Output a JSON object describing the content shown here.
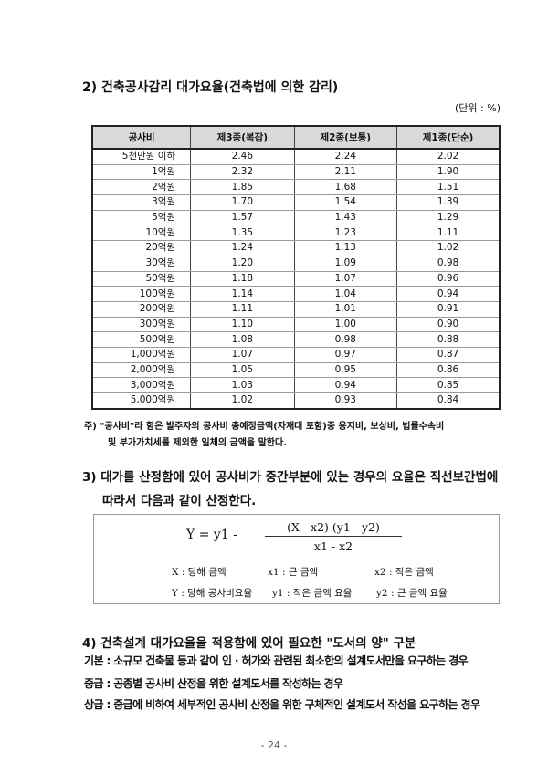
{
  "section2": {
    "title": "2) 건축공사감리 대가요율(건축법에 의한 감리)",
    "unit": "(단위 : %)",
    "table": {
      "headers": [
        "공사비",
        "제3종(복잡)",
        "제2종(보통)",
        "제1종(단순)"
      ],
      "rows": [
        [
          "5천만원 이하",
          "2.46",
          "2.24",
          "2.02"
        ],
        [
          "1억원",
          "2.32",
          "2.11",
          "1.90"
        ],
        [
          "2억원",
          "1.85",
          "1.68",
          "1.51"
        ],
        [
          "3억원",
          "1.70",
          "1.54",
          "1.39"
        ],
        [
          "5억원",
          "1.57",
          "1.43",
          "1.29"
        ],
        [
          "10억원",
          "1.35",
          "1.23",
          "1.11"
        ],
        [
          "20억원",
          "1.24",
          "1.13",
          "1.02"
        ],
        [
          "30억원",
          "1.20",
          "1.09",
          "0.98"
        ],
        [
          "50억원",
          "1.18",
          "1.07",
          "0.96"
        ],
        [
          "100억원",
          "1.14",
          "1.04",
          "0.94"
        ],
        [
          "200억원",
          "1.11",
          "1.01",
          "0.91"
        ],
        [
          "300억원",
          "1.10",
          "1.00",
          "0.90"
        ],
        [
          "500억원",
          "1.08",
          "0.98",
          "0.88"
        ],
        [
          "1,000억원",
          "1.07",
          "0.97",
          "0.87"
        ],
        [
          "2,000억원",
          "1.05",
          "0.95",
          "0.86"
        ],
        [
          "3,000억원",
          "1.03",
          "0.94",
          "0.85"
        ],
        [
          "5,000억원",
          "1.02",
          "0.93",
          "0.84"
        ]
      ]
    },
    "note_line1": "주) \"공사비\"라 함은 발주자의 공사비 총예정금액(자재대 포함)중 용지비, 보상비, 법률수속비",
    "note_line2": "및 부가가치세를 제외한 일체의 금액을 말한다."
  },
  "section3": {
    "line1": "3) 대가를 산정함에 있어 공사비가 중간부분에 있는 경우의 요율은 직선보간법에",
    "line2": "따라서 다음과 같이 산정한다.",
    "formula": {
      "lhs": "Y   =   y1 -",
      "numerator": "(X - x2)  (y1 - y2)",
      "denominator": "x1 - x2"
    },
    "legend": [
      [
        "X : 당해 금액",
        "x1 : 큰 금액",
        "x2 : 작은 금액"
      ],
      [
        "Y : 당해 공사비요율",
        "y1 : 작은 금액 요율",
        "y2 : 큰 금액 요율"
      ]
    ]
  },
  "section4": {
    "title": "4) 건축설계 대가요율을 적용함에 있어 필요한 \"도서의 양\" 구분",
    "items": [
      "기본 : 소규모 건축물 등과 같이 인 · 허가와 관련된 최소한의 설계도서만을 요구하는 경우",
      "중급 : 공종별 공사비 산정을 위한 설계도서를 작성하는 경우",
      "상급 : 중급에 비하여 세부적인 공사비 산정을 위한 구체적인 설계도서 작성을 요구하는 경우"
    ]
  },
  "page_number": "- 24 -"
}
